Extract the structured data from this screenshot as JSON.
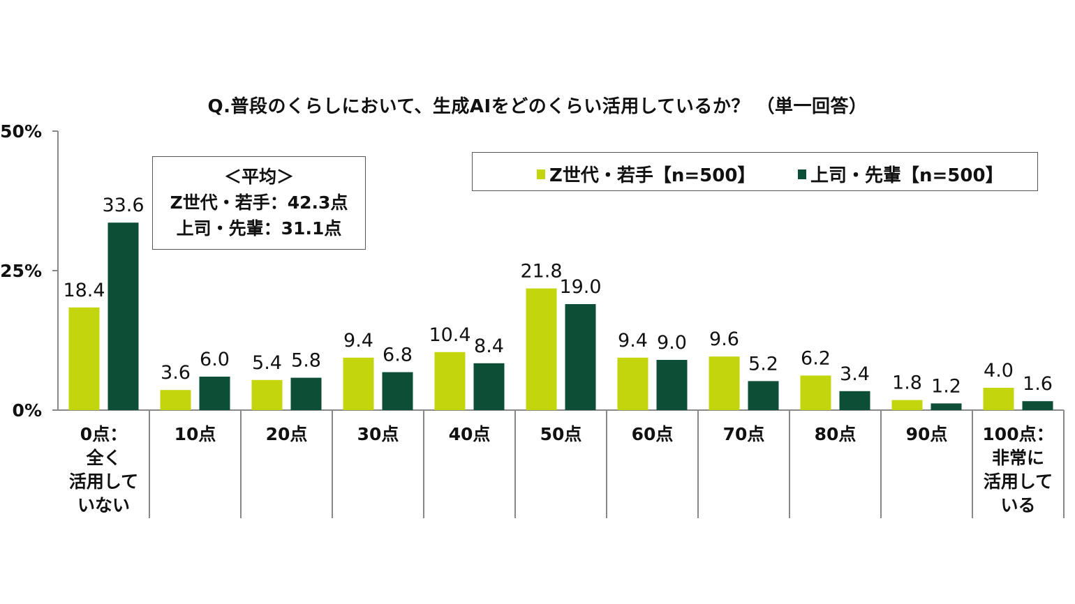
{
  "title": "Q.普段のくらしにおいて、生成AIをどのくらい活用しているか？ （単一回答）",
  "average_box": {
    "heading": "＜平均＞",
    "line1": "Z世代・若手：42.3点",
    "line2": "上司・先輩：31.1点"
  },
  "legend": {
    "series1_label": "Z世代・若手【n=500】",
    "series2_label": "上司・先輩【n=500】"
  },
  "colors": {
    "series1": "#c3d50d",
    "series2": "#0d4f36",
    "axis": "#888888"
  },
  "chart_data": {
    "type": "bar",
    "categories": [
      "0点：\n全く\n活用して\nいない",
      "10点",
      "20点",
      "30点",
      "40点",
      "50点",
      "60点",
      "70点",
      "80点",
      "90点",
      "100点：\n非常に\n活用して\nいる"
    ],
    "series": [
      {
        "name": "Z世代・若手【n=500】",
        "values": [
          18.4,
          3.6,
          5.4,
          9.4,
          10.4,
          21.8,
          9.4,
          9.6,
          6.2,
          1.8,
          4.0
        ]
      },
      {
        "name": "上司・先輩【n=500】",
        "values": [
          33.6,
          6.0,
          5.8,
          6.8,
          8.4,
          19.0,
          9.0,
          5.2,
          3.4,
          1.2,
          1.6
        ]
      }
    ],
    "ylim": [
      0,
      50
    ],
    "yticks": [
      "0%",
      "25%",
      "50%"
    ],
    "ytick_values": [
      0,
      25,
      50
    ],
    "legend_position": "top-right",
    "grid": false
  }
}
